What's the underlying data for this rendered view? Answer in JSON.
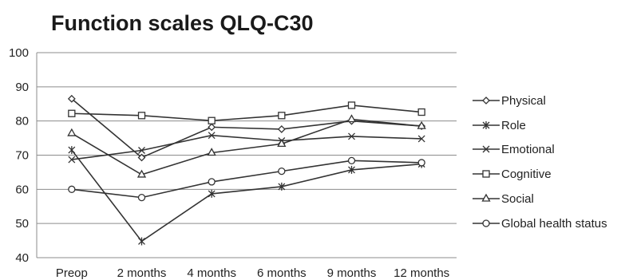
{
  "chart_data": {
    "type": "line",
    "title": "Function scales QLQ-C30",
    "xlabel": "",
    "ylabel": "",
    "categories": [
      "Preop",
      "2 months",
      "4 months",
      "6 months",
      "9 months",
      "12 months"
    ],
    "ylim": [
      40,
      100
    ],
    "yticks": [
      "100",
      "90",
      "80",
      "70",
      "60",
      "50",
      "40"
    ],
    "grid": true,
    "legend_position": "right",
    "line_color": "#333333",
    "series": [
      {
        "name": "Physical",
        "marker": "diamond",
        "values": [
          86.5,
          69.3,
          78.2,
          77.6,
          80.0,
          78.5
        ]
      },
      {
        "name": "Role",
        "marker": "star",
        "values": [
          71.5,
          44.8,
          58.7,
          60.8,
          65.7,
          67.4
        ]
      },
      {
        "name": "Emotional",
        "marker": "x",
        "values": [
          68.7,
          71.4,
          75.8,
          74.2,
          75.5,
          74.8
        ]
      },
      {
        "name": "Cognitive",
        "marker": "square",
        "values": [
          82.2,
          81.6,
          80.1,
          81.6,
          84.6,
          82.6
        ]
      },
      {
        "name": "Social",
        "marker": "triangle",
        "values": [
          76.4,
          64.3,
          70.7,
          73.3,
          80.5,
          78.5
        ]
      },
      {
        "name": "Global health status",
        "marker": "circle",
        "values": [
          60.0,
          57.6,
          62.2,
          65.3,
          68.4,
          67.8
        ]
      }
    ]
  }
}
